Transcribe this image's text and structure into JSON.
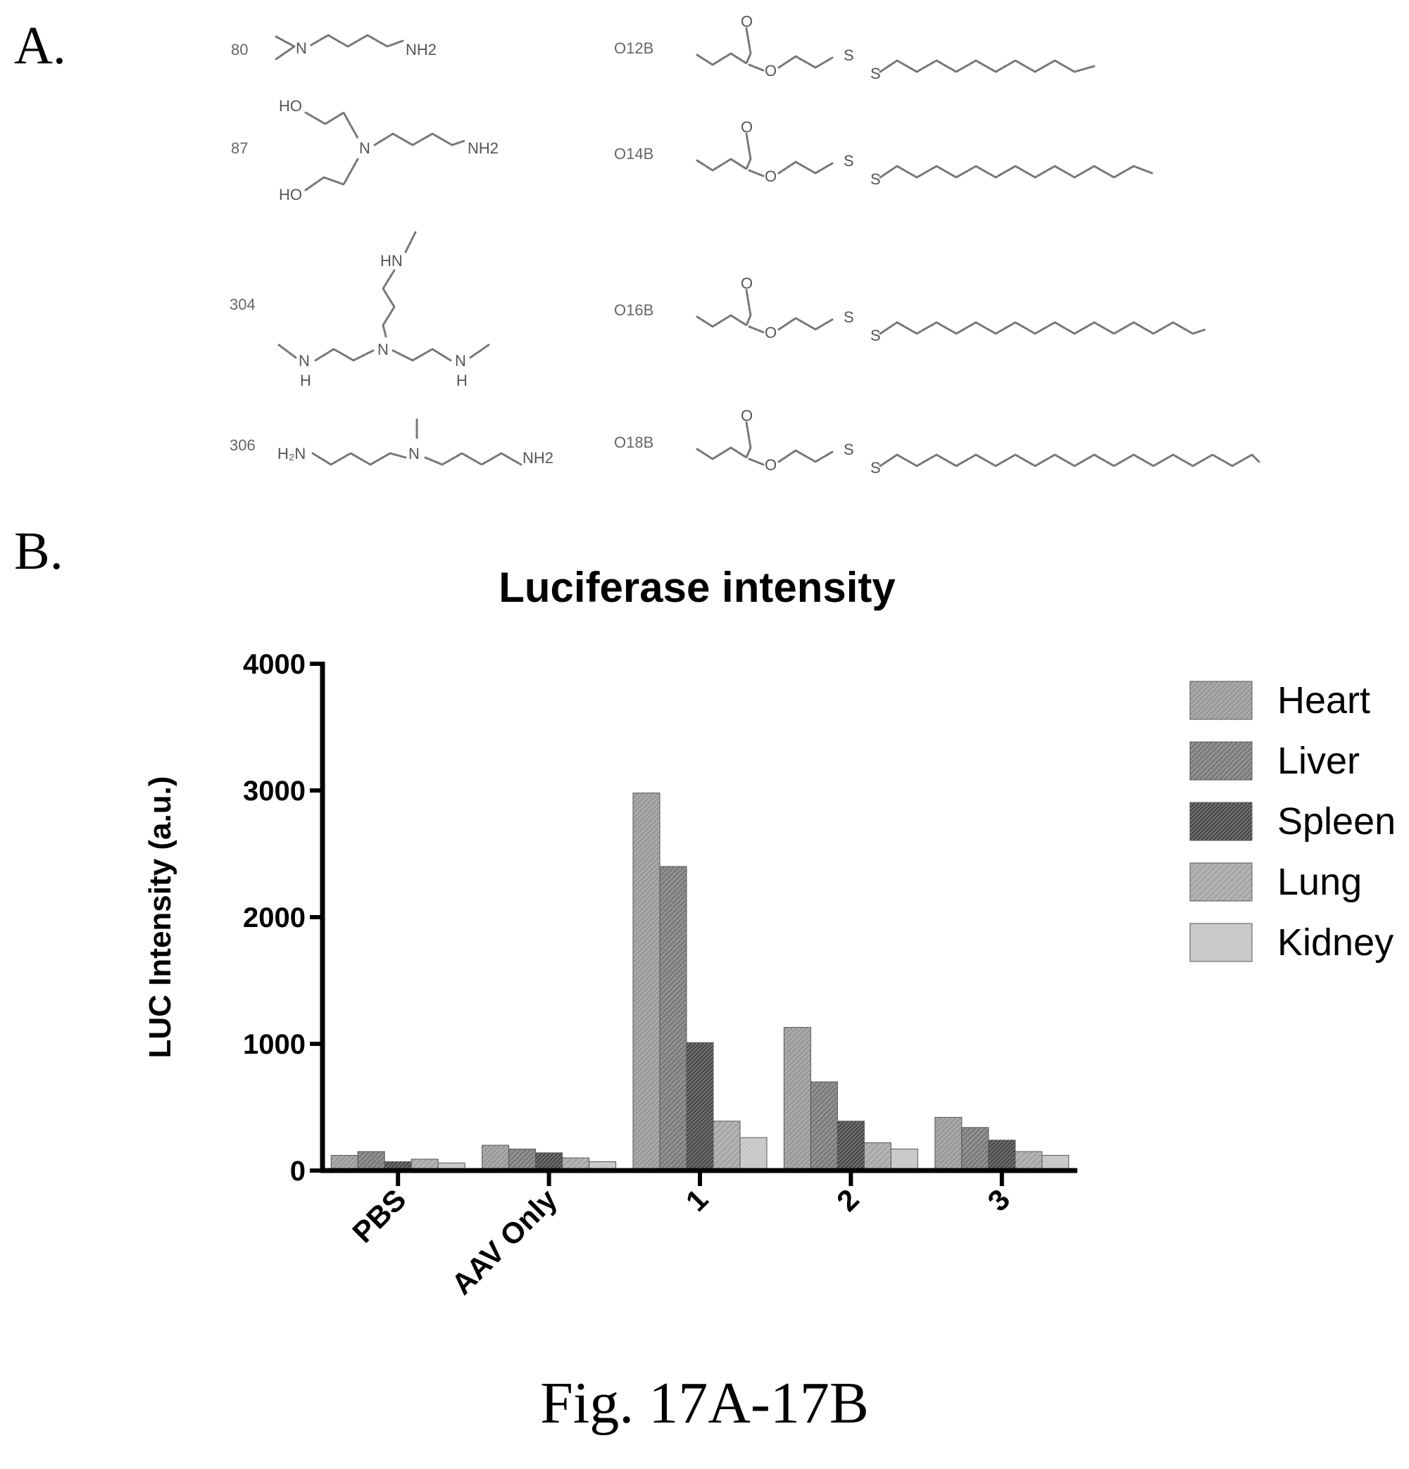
{
  "panel_a": {
    "label": "A.",
    "amines": [
      {
        "id": "80",
        "formula": "NH2"
      },
      {
        "id": "87",
        "formula": "NH2"
      },
      {
        "id": "304",
        "formula": ""
      },
      {
        "id": "306",
        "formula": "NH2"
      }
    ],
    "tails": [
      {
        "id": "O12B"
      },
      {
        "id": "O14B"
      },
      {
        "id": "O16B"
      },
      {
        "id": "O18B"
      }
    ]
  },
  "panel_b": {
    "label": "B."
  },
  "chart_data": {
    "type": "bar",
    "title": "Luciferase intensity",
    "xlabel": "",
    "ylabel": "LUC Intensity (a.u.)",
    "ylim": [
      0,
      4000
    ],
    "yticks": [
      "0",
      "1000",
      "2000",
      "3000",
      "4000"
    ],
    "grid": false,
    "legend_position": "right",
    "categories": [
      "PBS",
      "AAV Only",
      "1",
      "2",
      "3"
    ],
    "series": [
      {
        "name": "Heart",
        "values": [
          120,
          200,
          2980,
          1130,
          420
        ]
      },
      {
        "name": "Liver",
        "values": [
          150,
          170,
          2400,
          700,
          340
        ]
      },
      {
        "name": "Spleen",
        "values": [
          70,
          140,
          1010,
          390,
          240
        ]
      },
      {
        "name": "Lung",
        "values": [
          90,
          100,
          390,
          220,
          150
        ]
      },
      {
        "name": "Kidney",
        "values": [
          60,
          70,
          260,
          170,
          120
        ]
      }
    ],
    "series_colors": [
      "#9a9a9a",
      "#7c7c7c",
      "#4a4a4a",
      "#a8a8a8",
      "#c4c4c4"
    ]
  },
  "caption": "Fig. 17A-17B"
}
